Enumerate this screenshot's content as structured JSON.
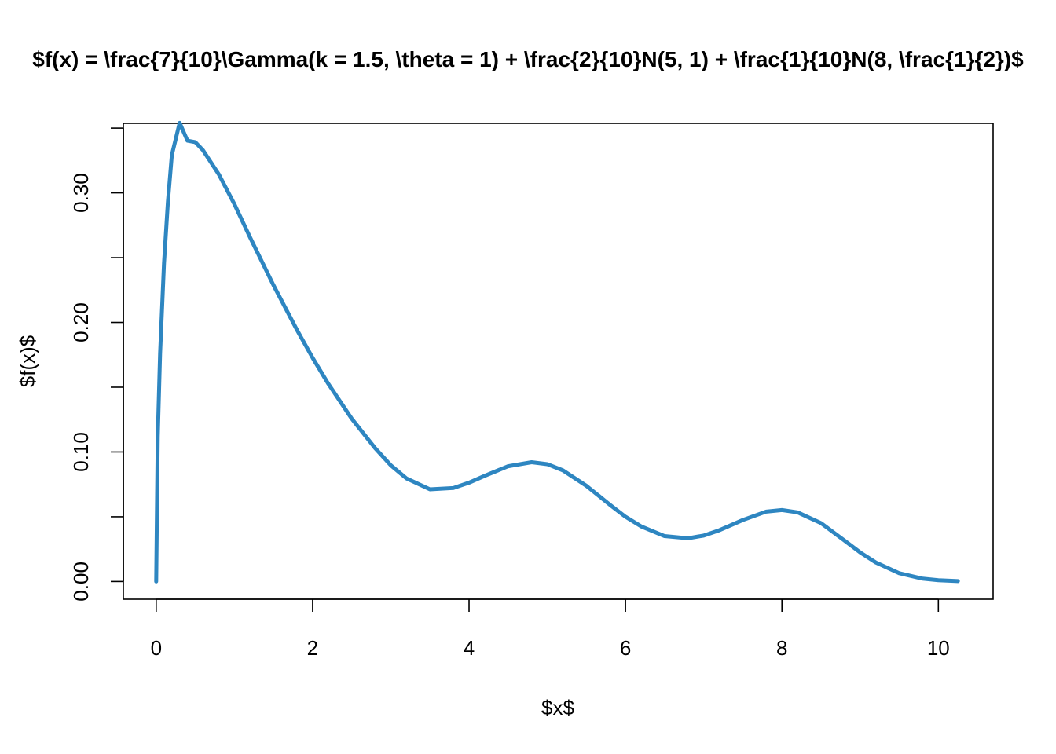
{
  "chart_data": {
    "type": "line",
    "title": "$f(x) = \\frac{7}{10}\\Gamma(k = 1.5, \\theta = 1) + \\frac{2}{10}N(5, 1) + \\frac{1}{10}N(8, \\frac{1}{2})$",
    "xlabel": "$x$",
    "ylabel": "$f(x)$",
    "xlim": [
      -0.42,
      10.7
    ],
    "ylim": [
      -0.0137,
      0.3537
    ],
    "x_ticks": [
      0,
      2,
      4,
      6,
      8,
      10
    ],
    "x_tick_labels": [
      "0",
      "2",
      "4",
      "6",
      "8",
      "10"
    ],
    "y_ticks": [
      0.0,
      0.05,
      0.1,
      0.15,
      0.2,
      0.25,
      0.3,
      0.35
    ],
    "y_tick_labels": [
      "0.00",
      "",
      "0.10",
      "",
      "0.20",
      "",
      "0.30",
      ""
    ],
    "grid": false,
    "series": [
      {
        "color": "#2E86C1",
        "x": [
          0,
          0.02,
          0.05,
          0.1,
          0.15,
          0.2,
          0.3,
          0.4,
          0.5,
          0.6,
          0.8,
          1.0,
          1.2,
          1.5,
          1.8,
          2.0,
          2.2,
          2.5,
          2.8,
          3.0,
          3.2,
          3.5,
          3.8,
          4.0,
          4.2,
          4.5,
          4.8,
          5.0,
          5.2,
          5.5,
          5.8,
          6.0,
          6.2,
          6.5,
          6.8,
          7.0,
          7.2,
          7.5,
          7.8,
          8.0,
          8.2,
          8.5,
          8.8,
          9.0,
          9.2,
          9.5,
          9.8,
          10.0,
          10.25
        ],
        "y": [
          0.0,
          0.1117,
          0.1761,
          0.2457,
          0.2931,
          0.3292,
          0.3541,
          0.3403,
          0.3392,
          0.3328,
          0.3144,
          0.2913,
          0.2657,
          0.2287,
          0.1942,
          0.1727,
          0.1527,
          0.1257,
          0.1029,
          0.0897,
          0.0796,
          0.0712,
          0.0722,
          0.0763,
          0.0816,
          0.089,
          0.0921,
          0.0906,
          0.0858,
          0.0739,
          0.0593,
          0.05,
          0.0426,
          0.0351,
          0.0334,
          0.0355,
          0.0396,
          0.0475,
          0.054,
          0.0552,
          0.0534,
          0.0451,
          0.0316,
          0.0225,
          0.0147,
          0.0064,
          0.0022,
          0.001,
          0.0003
        ]
      }
    ]
  }
}
